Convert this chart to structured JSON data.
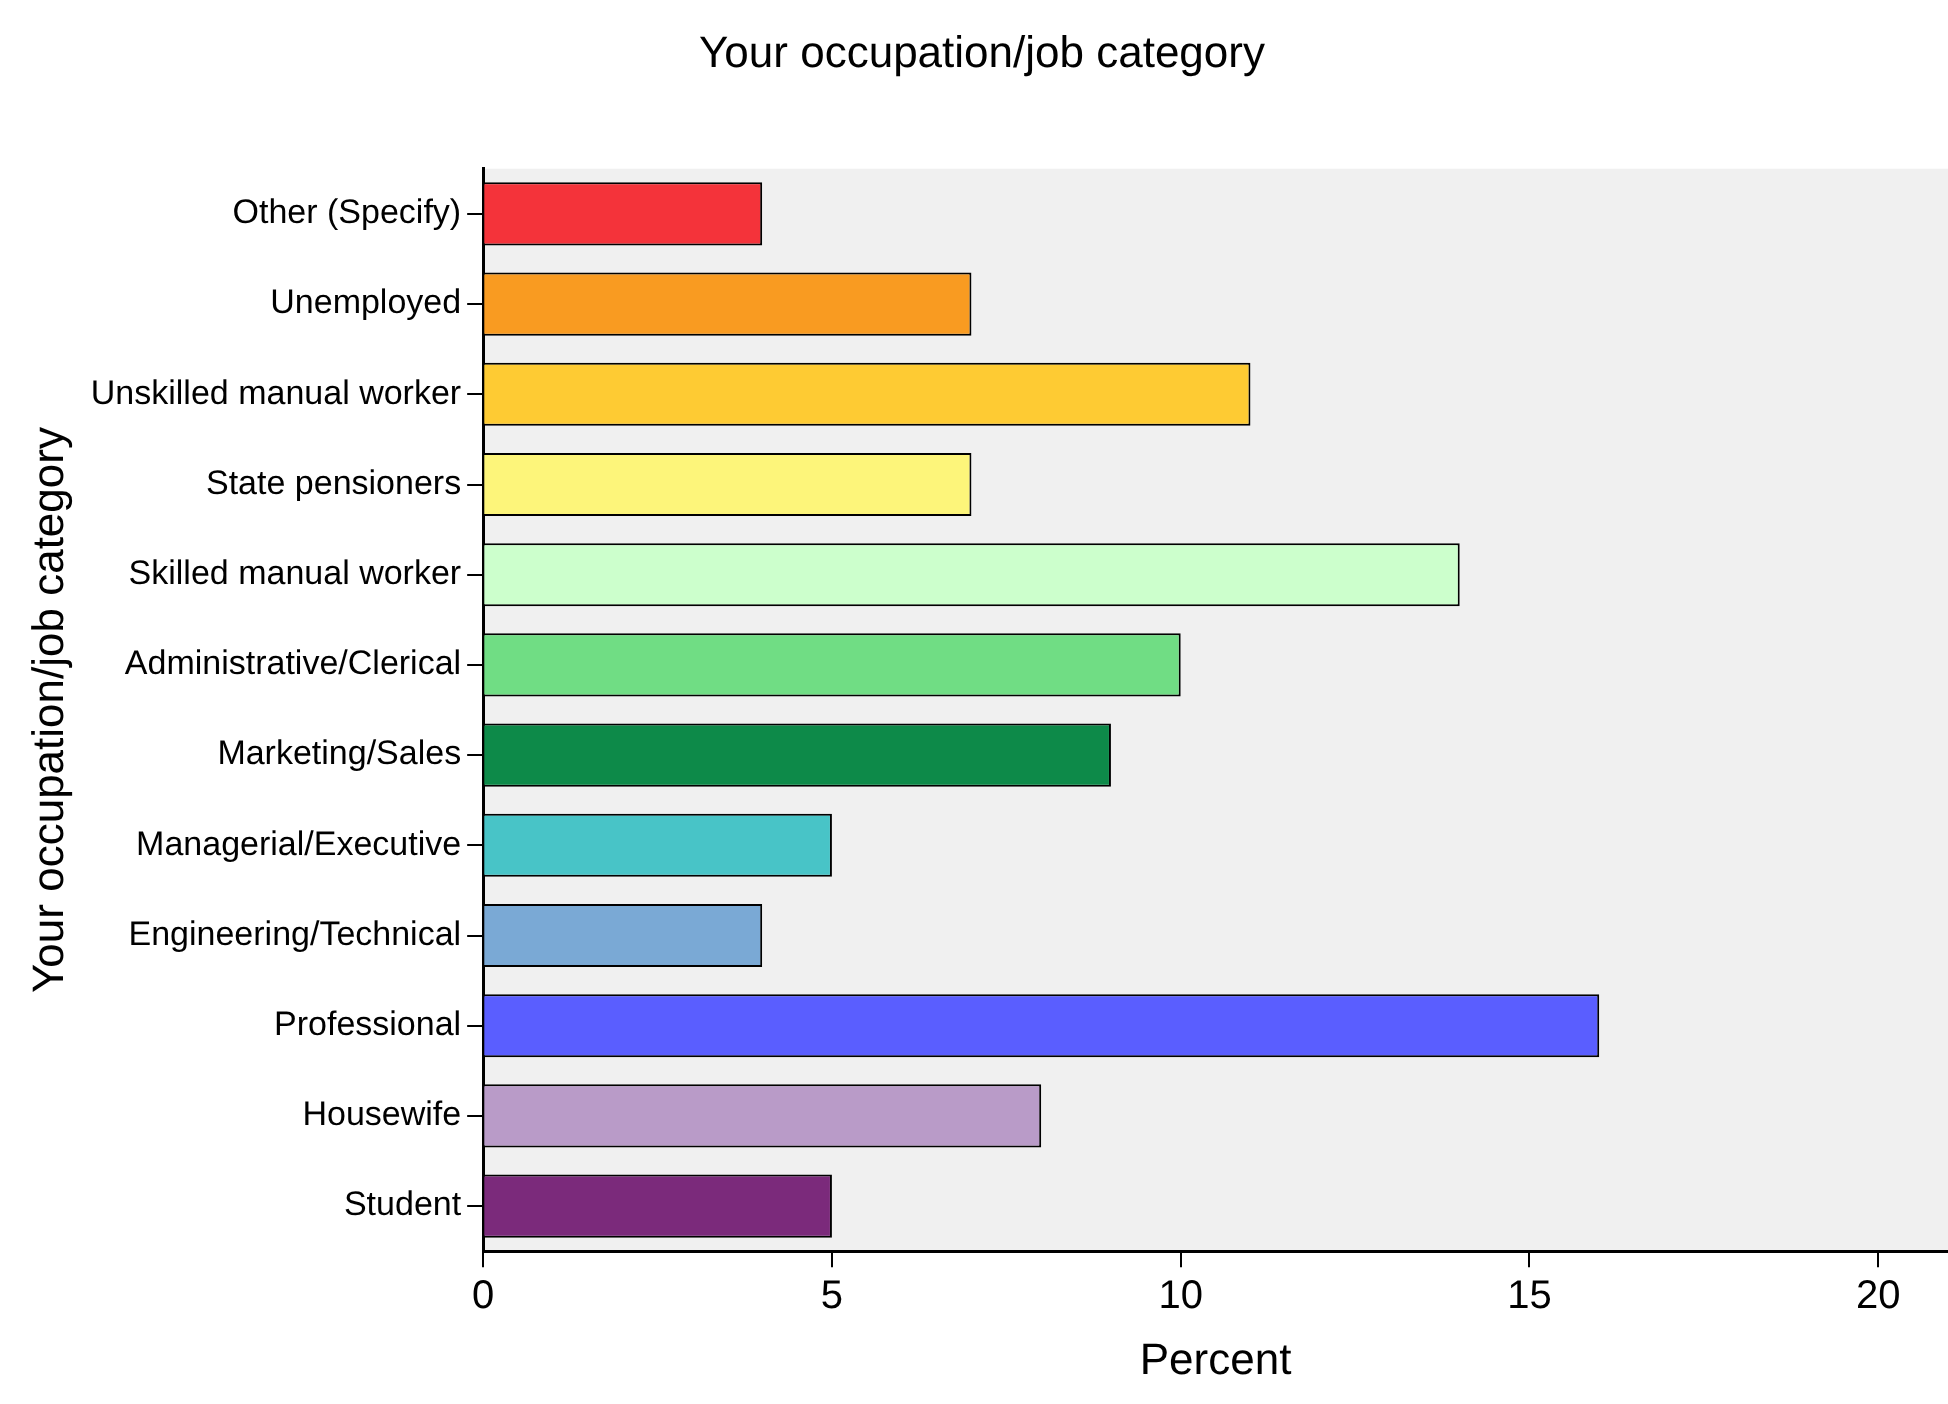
{
  "chart_data": {
    "type": "bar",
    "orientation": "horizontal",
    "title": "Your occupation/job category",
    "xlabel": "Percent",
    "ylabel": "Your occupation/job category",
    "categories": [
      "Other (Specify)",
      "Unemployed",
      "Unskilled manual worker",
      "State pensioners",
      "Skilled manual worker",
      "Administrative/Clerical",
      "Marketing/Sales",
      "Managerial/Executive",
      "Engineering/Technical",
      "Professional",
      "Housewife",
      "Student"
    ],
    "values": [
      4,
      7,
      11,
      7,
      14,
      10,
      9,
      5,
      4,
      16,
      8,
      5
    ],
    "colors": [
      "#f4333a",
      "#f99b21",
      "#fecb33",
      "#fdf57a",
      "#ccffcc",
      "#70dd84",
      "#0d8a49",
      "#48c4c7",
      "#7aa9d5",
      "#5a5eff",
      "#b99bc8",
      "#7b2a7b"
    ],
    "xlim": [
      0,
      21
    ],
    "xticks": [
      0,
      5,
      10,
      15,
      20
    ],
    "grid": false,
    "legend": false
  }
}
